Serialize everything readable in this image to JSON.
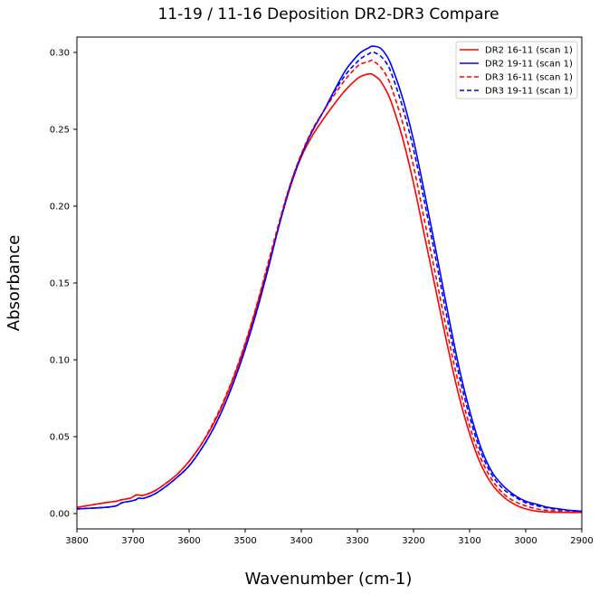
{
  "chart_data": {
    "type": "line",
    "title": "11-19 / 11-16 Deposition DR2-DR3 Compare",
    "xlabel": "Wavenumber (cm-1)",
    "ylabel": "Absorbance",
    "xlim": [
      3800,
      2900
    ],
    "x_reversed": true,
    "ylim": [
      -0.01,
      0.31
    ],
    "x_ticks": [
      3800,
      3700,
      3600,
      3500,
      3400,
      3300,
      3200,
      3100,
      3000,
      2900
    ],
    "x_tick_labels": [
      "3800",
      "3700",
      "3600",
      "3500",
      "3400",
      "3300",
      "3200",
      "3100",
      "3000",
      "2900"
    ],
    "y_ticks": [
      0.0,
      0.05,
      0.1,
      0.15,
      0.2,
      0.25,
      0.3
    ],
    "y_tick_labels": [
      "0.00",
      "0.05",
      "0.10",
      "0.15",
      "0.20",
      "0.25",
      "0.30"
    ],
    "grid": false,
    "legend_position": "top-right",
    "series": [
      {
        "name": "DR2 16-11 (scan 1)",
        "color": "#ff0000",
        "dash": "solid",
        "x": [
          3800,
          3750,
          3730,
          3720,
          3705,
          3695,
          3690,
          3680,
          3660,
          3640,
          3620,
          3600,
          3580,
          3560,
          3540,
          3520,
          3500,
          3480,
          3460,
          3440,
          3420,
          3400,
          3380,
          3360,
          3340,
          3320,
          3300,
          3290,
          3280,
          3275,
          3270,
          3260,
          3250,
          3240,
          3220,
          3200,
          3180,
          3160,
          3140,
          3120,
          3100,
          3080,
          3060,
          3040,
          3020,
          3000,
          2980,
          2960,
          2940,
          2920,
          2900
        ],
        "y": [
          0.004,
          0.007,
          0.008,
          0.009,
          0.01,
          0.012,
          0.012,
          0.012,
          0.015,
          0.02,
          0.026,
          0.034,
          0.044,
          0.056,
          0.071,
          0.089,
          0.11,
          0.134,
          0.16,
          0.187,
          0.212,
          0.232,
          0.246,
          0.257,
          0.267,
          0.276,
          0.283,
          0.285,
          0.286,
          0.286,
          0.285,
          0.282,
          0.276,
          0.268,
          0.245,
          0.215,
          0.18,
          0.145,
          0.11,
          0.078,
          0.052,
          0.032,
          0.019,
          0.011,
          0.006,
          0.003,
          0.0015,
          0.001,
          0.0008,
          0.0007,
          0.0007
        ]
      },
      {
        "name": "DR2 19-11 (scan 1)",
        "color": "#0000ff",
        "dash": "solid",
        "x": [
          3800,
          3750,
          3730,
          3720,
          3705,
          3695,
          3690,
          3680,
          3660,
          3640,
          3620,
          3600,
          3580,
          3560,
          3540,
          3520,
          3500,
          3480,
          3460,
          3440,
          3420,
          3400,
          3380,
          3360,
          3340,
          3320,
          3300,
          3290,
          3280,
          3275,
          3270,
          3260,
          3250,
          3240,
          3220,
          3200,
          3180,
          3160,
          3140,
          3120,
          3100,
          3080,
          3060,
          3040,
          3020,
          3000,
          2980,
          2960,
          2940,
          2920,
          2900
        ],
        "y": [
          0.003,
          0.004,
          0.005,
          0.007,
          0.008,
          0.009,
          0.01,
          0.01,
          0.013,
          0.018,
          0.024,
          0.031,
          0.041,
          0.053,
          0.068,
          0.086,
          0.107,
          0.131,
          0.158,
          0.187,
          0.213,
          0.233,
          0.249,
          0.262,
          0.276,
          0.289,
          0.298,
          0.301,
          0.303,
          0.304,
          0.304,
          0.303,
          0.299,
          0.292,
          0.271,
          0.243,
          0.208,
          0.171,
          0.133,
          0.097,
          0.067,
          0.043,
          0.027,
          0.018,
          0.012,
          0.008,
          0.006,
          0.004,
          0.003,
          0.002,
          0.0015
        ]
      },
      {
        "name": "DR3 16-11 (scan 1)",
        "color": "#ff0000",
        "dash": "dashed",
        "x": [
          3800,
          3750,
          3730,
          3720,
          3705,
          3695,
          3690,
          3680,
          3660,
          3640,
          3620,
          3600,
          3580,
          3560,
          3540,
          3520,
          3500,
          3480,
          3460,
          3440,
          3420,
          3400,
          3380,
          3360,
          3340,
          3320,
          3300,
          3290,
          3280,
          3275,
          3270,
          3260,
          3250,
          3240,
          3220,
          3200,
          3180,
          3160,
          3140,
          3120,
          3100,
          3080,
          3060,
          3040,
          3020,
          3000,
          2980,
          2960,
          2940,
          2920,
          2900
        ],
        "y": [
          0.004,
          0.007,
          0.008,
          0.009,
          0.01,
          0.012,
          0.012,
          0.012,
          0.015,
          0.02,
          0.026,
          0.034,
          0.044,
          0.057,
          0.072,
          0.09,
          0.111,
          0.135,
          0.162,
          0.189,
          0.214,
          0.234,
          0.25,
          0.262,
          0.273,
          0.283,
          0.291,
          0.293,
          0.294,
          0.295,
          0.294,
          0.291,
          0.286,
          0.278,
          0.255,
          0.226,
          0.19,
          0.154,
          0.118,
          0.085,
          0.057,
          0.036,
          0.022,
          0.013,
          0.008,
          0.005,
          0.003,
          0.002,
          0.0015,
          0.001,
          0.001
        ]
      },
      {
        "name": "DR3 19-11 (scan 1)",
        "color": "#0000ff",
        "dash": "dashed",
        "x": [
          3800,
          3750,
          3730,
          3720,
          3705,
          3695,
          3690,
          3680,
          3660,
          3640,
          3620,
          3600,
          3580,
          3560,
          3540,
          3520,
          3500,
          3480,
          3460,
          3440,
          3420,
          3400,
          3380,
          3360,
          3340,
          3320,
          3300,
          3290,
          3280,
          3275,
          3270,
          3260,
          3250,
          3240,
          3220,
          3200,
          3180,
          3160,
          3140,
          3120,
          3100,
          3080,
          3060,
          3040,
          3020,
          3000,
          2980,
          2960,
          2940,
          2920,
          2900
        ],
        "y": [
          0.003,
          0.004,
          0.005,
          0.007,
          0.008,
          0.009,
          0.01,
          0.01,
          0.013,
          0.018,
          0.024,
          0.031,
          0.041,
          0.053,
          0.068,
          0.086,
          0.107,
          0.131,
          0.158,
          0.187,
          0.213,
          0.233,
          0.249,
          0.262,
          0.275,
          0.286,
          0.294,
          0.297,
          0.299,
          0.3,
          0.3,
          0.298,
          0.294,
          0.287,
          0.265,
          0.237,
          0.202,
          0.165,
          0.127,
          0.092,
          0.063,
          0.04,
          0.025,
          0.016,
          0.011,
          0.007,
          0.005,
          0.0035,
          0.0025,
          0.002,
          0.0015
        ]
      }
    ]
  }
}
